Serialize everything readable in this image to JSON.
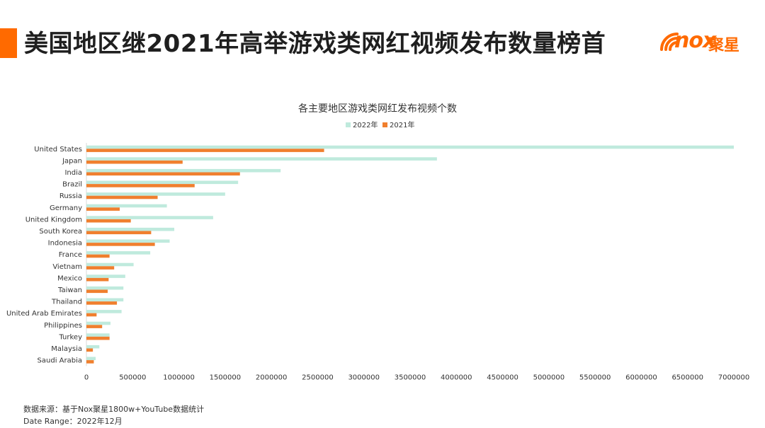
{
  "header": {
    "title": "美国地区继2021年高举游戏类网红视频发布数量榜首",
    "logo": {
      "latin": "nox",
      "cn": "聚星"
    }
  },
  "footer": {
    "source": "数据来源：基于Nox聚星1800w+YouTube数据统计",
    "date_range": "Date Range：2022年12月"
  },
  "colors": {
    "accent": "#ff6a00",
    "series_2022": "#bfeadd",
    "series_2021": "#f07f2e",
    "grid": "#d9d9d9"
  },
  "chart_data": {
    "type": "bar",
    "orientation": "horizontal",
    "title": "各主要地区游戏类网红发布视频个数",
    "categories": [
      "United States",
      "Japan",
      "India",
      "Brazil",
      "Russia",
      "Germany",
      "United Kingdom",
      "South Korea",
      "Indonesia",
      "France",
      "Vietnam",
      "Mexico",
      "Taiwan",
      "Thailand",
      "United Arab Emirates",
      "Philippines",
      "Turkey",
      "Malaysia",
      "Saudi Arabia"
    ],
    "series": [
      {
        "name": "2022年",
        "values": [
          7000000,
          3790000,
          2100000,
          1640000,
          1500000,
          870000,
          1370000,
          950000,
          900000,
          690000,
          510000,
          420000,
          400000,
          400000,
          380000,
          260000,
          250000,
          140000,
          100000
        ]
      },
      {
        "name": "2021年",
        "values": [
          2570000,
          1040000,
          1660000,
          1170000,
          770000,
          360000,
          480000,
          700000,
          740000,
          250000,
          300000,
          240000,
          230000,
          330000,
          110000,
          170000,
          250000,
          70000,
          80000
        ]
      }
    ],
    "xlim": [
      0,
      7000000
    ],
    "xticks": [
      0,
      500000,
      1000000,
      1500000,
      2000000,
      2500000,
      3000000,
      3500000,
      4000000,
      4500000,
      5000000,
      5500000,
      6000000,
      6500000,
      7000000
    ],
    "legend_position": "top-center",
    "grid": false
  }
}
